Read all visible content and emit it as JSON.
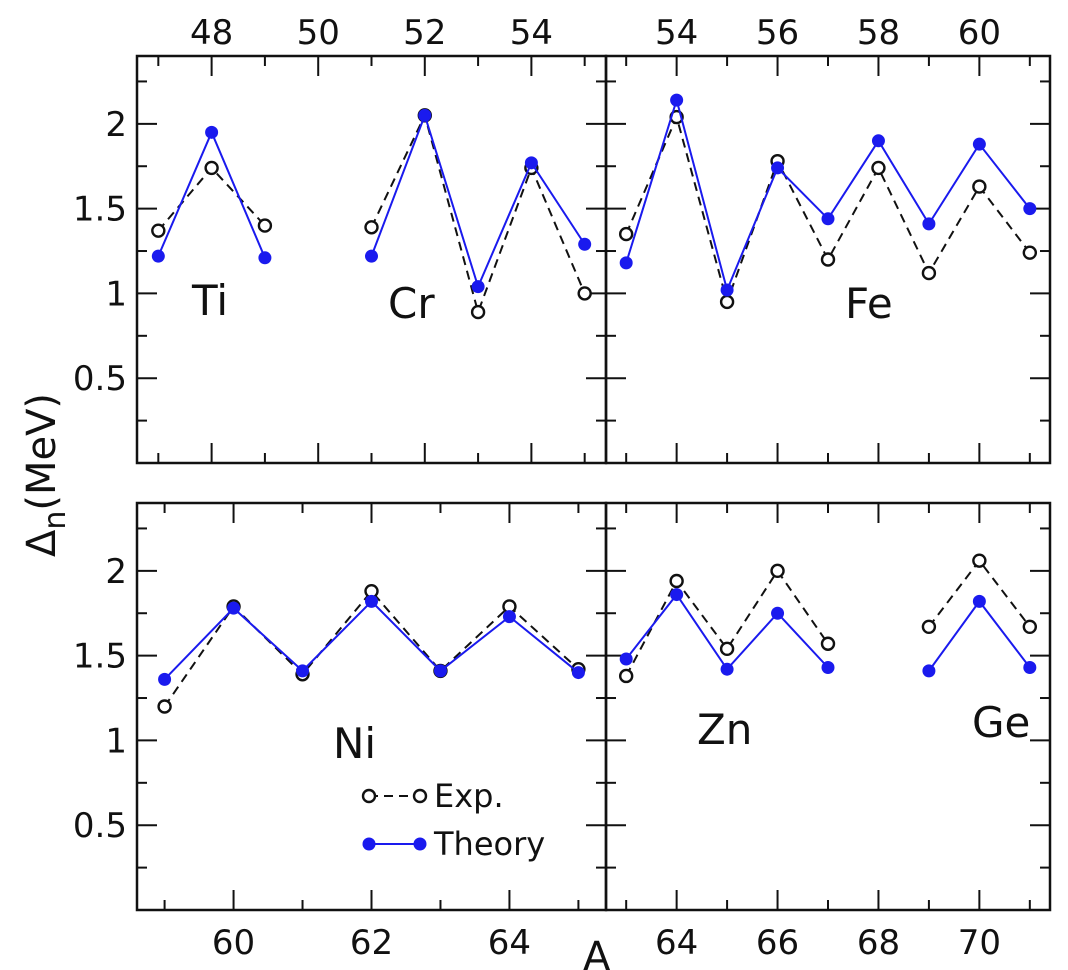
{
  "chart_data": {
    "type": "line",
    "ylabel_main": "Δ",
    "ylabel_sub": "n",
    "ylabel_unit": "(MeV)",
    "xlabel": "A",
    "ylim": [
      0,
      2.4
    ],
    "y_ticks": [
      "0.5",
      "1",
      "1.5",
      "2"
    ],
    "legend": {
      "placement": "bottom-left of lower-left panel",
      "entries": [
        "Exp.",
        "Theory"
      ]
    },
    "colors": {
      "exp": "#111111",
      "theory": "#1a1aee"
    },
    "panels": [
      {
        "element": "Ti",
        "x_axis_position": "top",
        "xlim": [
          46.6,
          55.4
        ],
        "x_ticks": [
          "48",
          "50",
          "52",
          "54"
        ],
        "series": [
          {
            "name": "Exp.",
            "x": [
              47,
              48,
              49
            ],
            "y": [
              1.37,
              1.74,
              1.4
            ]
          },
          {
            "name": "Theory",
            "x": [
              47,
              48,
              49
            ],
            "y": [
              1.22,
              1.95,
              1.21
            ]
          }
        ]
      },
      {
        "element": "Cr",
        "x_axis_position": "top",
        "xlim": [
          46.6,
          55.4
        ],
        "series": [
          {
            "name": "Exp.",
            "x": [
              51,
              52,
              53,
              54,
              55
            ],
            "y": [
              1.39,
              2.05,
              0.89,
              1.74,
              1.0
            ]
          },
          {
            "name": "Theory",
            "x": [
              51,
              52,
              53,
              54,
              55
            ],
            "y": [
              1.22,
              2.05,
              1.04,
              1.77,
              1.29
            ]
          }
        ]
      },
      {
        "element": "Fe",
        "x_axis_position": "top",
        "xlim": [
          52.6,
          61.4
        ],
        "x_ticks": [
          "54",
          "56",
          "58",
          "60"
        ],
        "series": [
          {
            "name": "Exp.",
            "x": [
              53,
              54,
              55,
              56,
              57,
              58,
              59,
              60,
              61
            ],
            "y": [
              1.35,
              2.04,
              0.95,
              1.78,
              1.2,
              1.74,
              1.12,
              1.63,
              1.24
            ]
          },
          {
            "name": "Theory",
            "x": [
              53,
              54,
              55,
              56,
              57,
              58,
              59,
              60,
              61
            ],
            "y": [
              1.18,
              2.14,
              1.02,
              1.74,
              1.44,
              1.9,
              1.41,
              1.88,
              1.5
            ]
          }
        ]
      },
      {
        "element": "Ni",
        "x_axis_position": "bottom",
        "xlim": [
          58.6,
          65.4
        ],
        "x_ticks": [
          "60",
          "62",
          "64"
        ],
        "series": [
          {
            "name": "Exp.",
            "x": [
              59,
              60,
              61,
              62,
              63,
              64,
              65
            ],
            "y": [
              1.2,
              1.79,
              1.39,
              1.88,
              1.41,
              1.79,
              1.42
            ]
          },
          {
            "name": "Theory",
            "x": [
              59,
              60,
              61,
              62,
              63,
              64,
              65
            ],
            "y": [
              1.36,
              1.78,
              1.41,
              1.82,
              1.41,
              1.73,
              1.4
            ]
          }
        ]
      },
      {
        "element": "Zn",
        "x_axis_position": "bottom",
        "xlim": [
          62.6,
          71.4
        ],
        "x_ticks": [
          "64",
          "66",
          "68",
          "70"
        ],
        "series": [
          {
            "name": "Exp.",
            "x": [
              63,
              64,
              65,
              66,
              67
            ],
            "y": [
              1.38,
              1.94,
              1.54,
              2.0,
              1.57
            ]
          },
          {
            "name": "Theory",
            "x": [
              63,
              64,
              65,
              66,
              67
            ],
            "y": [
              1.48,
              1.86,
              1.42,
              1.75,
              1.43
            ]
          }
        ]
      },
      {
        "element": "Ge",
        "x_axis_position": "bottom",
        "xlim": [
          62.6,
          71.4
        ],
        "series": [
          {
            "name": "Exp.",
            "x": [
              69,
              70,
              71
            ],
            "y": [
              1.67,
              2.06,
              1.67
            ]
          },
          {
            "name": "Theory",
            "x": [
              69,
              70,
              71
            ],
            "y": [
              1.41,
              1.82,
              1.43
            ]
          }
        ]
      }
    ]
  }
}
